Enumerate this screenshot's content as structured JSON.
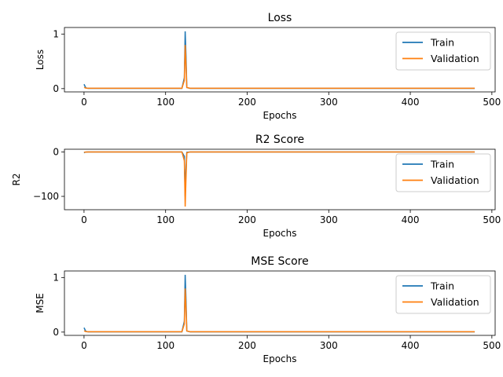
{
  "chart_data": [
    {
      "type": "line",
      "title": "Loss",
      "xlabel": "Epochs",
      "ylabel": "Loss",
      "xlim": [
        -24,
        504
      ],
      "ylim": [
        -0.06,
        1.12
      ],
      "xticks": [
        0,
        100,
        200,
        300,
        400,
        500
      ],
      "yticks": [
        0,
        1
      ],
      "ytick_labels": [
        "0",
        "1"
      ],
      "grid": false,
      "legend_position": "upper-right",
      "series": [
        {
          "name": "Train",
          "color": "#1f77b4",
          "x": [
            0,
            1,
            2,
            3,
            5,
            10,
            50,
            100,
            120,
            123,
            124,
            125,
            126,
            130,
            200,
            300,
            400,
            479
          ],
          "y": [
            0.08,
            0.05,
            0.02,
            0.01,
            0.005,
            0.005,
            0.005,
            0.005,
            0.005,
            0.2,
            1.05,
            0.6,
            0.02,
            0.005,
            0.005,
            0.005,
            0.005,
            0.005
          ]
        },
        {
          "name": "Validation",
          "color": "#ff7f0e",
          "x": [
            0,
            1,
            2,
            3,
            5,
            10,
            50,
            100,
            120,
            123,
            124,
            125,
            126,
            130,
            200,
            300,
            400,
            479
          ],
          "y": [
            0.02,
            0.02,
            0.01,
            0.008,
            0.006,
            0.006,
            0.006,
            0.006,
            0.006,
            0.15,
            0.8,
            0.45,
            0.02,
            0.006,
            0.006,
            0.006,
            0.006,
            0.006
          ]
        }
      ]
    },
    {
      "type": "line",
      "title": "R2 Score",
      "xlabel": "Epochs",
      "ylabel": "R2",
      "xlim": [
        -24,
        504
      ],
      "ylim": [
        -130,
        6
      ],
      "xticks": [
        0,
        100,
        200,
        300,
        400,
        500
      ],
      "yticks": [
        0,
        -100
      ],
      "ytick_labels": [
        "0",
        "−100"
      ],
      "grid": false,
      "legend_position": "upper-right",
      "series": [
        {
          "name": "Train",
          "color": "#1f77b4",
          "x": [
            0,
            1,
            2,
            5,
            10,
            50,
            100,
            120,
            123,
            124,
            125,
            126,
            130,
            200,
            300,
            400,
            479
          ],
          "y": [
            -2,
            -1,
            -0.5,
            -0.2,
            -0.1,
            -0.1,
            -0.1,
            -0.1,
            -10,
            -100,
            -40,
            -1,
            -0.1,
            -0.1,
            -0.1,
            -0.1,
            -0.1
          ]
        },
        {
          "name": "Validation",
          "color": "#ff7f0e",
          "x": [
            0,
            1,
            2,
            5,
            10,
            50,
            100,
            120,
            123,
            124,
            125,
            126,
            130,
            200,
            300,
            400,
            479
          ],
          "y": [
            -1,
            -0.5,
            -0.3,
            -0.2,
            -0.1,
            -0.1,
            -0.1,
            -0.1,
            -20,
            -123,
            -60,
            -2,
            -0.1,
            -0.1,
            -0.1,
            -0.1,
            -0.1
          ]
        }
      ]
    },
    {
      "type": "line",
      "title": "MSE Score",
      "xlabel": "Epochs",
      "ylabel": "MSE",
      "xlim": [
        -24,
        504
      ],
      "ylim": [
        -0.06,
        1.12
      ],
      "xticks": [
        0,
        100,
        200,
        300,
        400,
        500
      ],
      "yticks": [
        0,
        1
      ],
      "ytick_labels": [
        "0",
        "1"
      ],
      "grid": false,
      "legend_position": "upper-right",
      "series": [
        {
          "name": "Train",
          "color": "#1f77b4",
          "x": [
            0,
            1,
            2,
            3,
            5,
            10,
            50,
            100,
            120,
            123,
            124,
            125,
            126,
            130,
            200,
            300,
            400,
            479
          ],
          "y": [
            0.08,
            0.05,
            0.02,
            0.01,
            0.005,
            0.005,
            0.005,
            0.005,
            0.005,
            0.2,
            1.05,
            0.6,
            0.02,
            0.005,
            0.005,
            0.005,
            0.005,
            0.005
          ]
        },
        {
          "name": "Validation",
          "color": "#ff7f0e",
          "x": [
            0,
            1,
            2,
            3,
            5,
            10,
            50,
            100,
            120,
            123,
            124,
            125,
            126,
            130,
            200,
            300,
            400,
            479
          ],
          "y": [
            0.02,
            0.02,
            0.01,
            0.008,
            0.006,
            0.006,
            0.006,
            0.006,
            0.006,
            0.15,
            0.8,
            0.45,
            0.02,
            0.006,
            0.006,
            0.006,
            0.006,
            0.006
          ]
        }
      ]
    }
  ]
}
